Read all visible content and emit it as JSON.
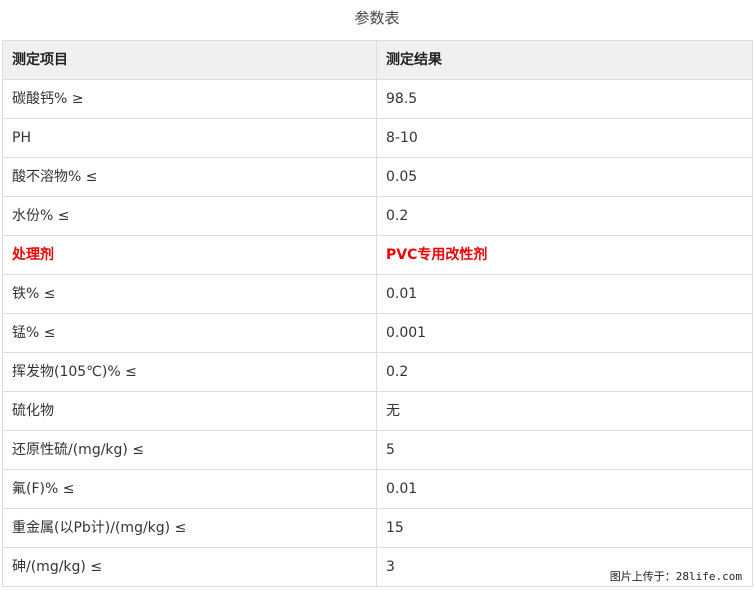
{
  "title": "参数表",
  "headers": [
    "测定项目",
    "测定结果"
  ],
  "rows": [
    [
      "碳酸钙% ≥",
      "98.5"
    ],
    [
      "PH",
      "8-10"
    ],
    [
      "酸不溶物% ≤",
      "0.05"
    ],
    [
      "水份% ≤",
      "0.2"
    ],
    [
      "处理剂",
      "PVC专用改性剂"
    ],
    [
      "铁% ≤",
      "0.01"
    ],
    [
      "锰% ≤",
      "0.001"
    ],
    [
      "挥发物(105℃)% ≤",
      "0.2"
    ],
    [
      "硫化物",
      "无"
    ],
    [
      "还原性硫/(mg/kg) ≤",
      "5"
    ],
    [
      "氟(F)% ≤",
      "0.01"
    ],
    [
      "重金属(以Pb计)/(mg/kg) ≤",
      "15"
    ],
    [
      "砷/(mg/kg) ≤",
      "3"
    ]
  ],
  "highlight_row": 4,
  "highlight_color": "#e00000",
  "watermark": "图片上传于：28life.com"
}
